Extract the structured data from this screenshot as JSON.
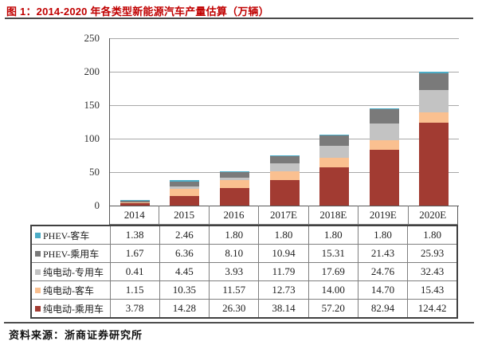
{
  "title": "图 1：2014-2020 年各类型新能源汽车产量估算（万辆）",
  "source": "资料来源：浙商证券研究所",
  "colors": {
    "title_red": "#c00000",
    "axis": "#595959",
    "gridline": "#a8a8a8",
    "table_border": "#7f7f7f"
  },
  "chart_data": {
    "type": "bar",
    "stacked": true,
    "title": "2014-2020 年各类型新能源汽车产量估算（万辆）",
    "xlabel": "",
    "ylabel": "",
    "ylim": [
      0,
      250
    ],
    "yticks": [
      0,
      50,
      100,
      150,
      200,
      250
    ],
    "grid": true,
    "legend_position": "table-left",
    "categories": [
      "2014",
      "2015",
      "2016",
      "2017E",
      "2018E",
      "2019E",
      "2020E"
    ],
    "series": [
      {
        "name": "PHEV-客车",
        "color": "#4bacc6",
        "values": [
          1.38,
          2.46,
          1.8,
          1.8,
          1.8,
          1.8,
          1.8
        ]
      },
      {
        "name": "PHEV-乘用车",
        "color": "#7a7a7a",
        "values": [
          1.67,
          6.36,
          8.1,
          10.94,
          15.31,
          21.43,
          25.93
        ]
      },
      {
        "name": "纯电动-专用车",
        "color": "#c3c3c3",
        "values": [
          0.41,
          4.45,
          3.93,
          11.79,
          17.69,
          24.76,
          32.43
        ]
      },
      {
        "name": "纯电动-客车",
        "color": "#fac090",
        "values": [
          1.15,
          10.35,
          11.57,
          12.73,
          14.0,
          14.7,
          15.43
        ]
      },
      {
        "name": "纯电动-乘用车",
        "color": "#a23b32",
        "values": [
          3.78,
          14.28,
          26.3,
          38.14,
          57.2,
          82.94,
          124.42
        ]
      }
    ],
    "stack_order_note": "series listed top-of-stack to bottom-of-stack"
  }
}
